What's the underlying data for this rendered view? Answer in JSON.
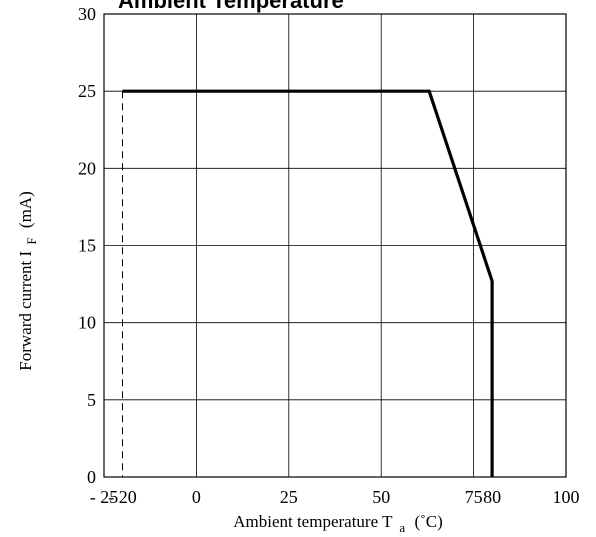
{
  "chart_data": {
    "type": "line",
    "title": "Ambient Temperature",
    "xlabel": {
      "main": "Ambient temperature T",
      "sub": "a",
      "unit": "(˚C)"
    },
    "ylabel": {
      "main": "Forward current I",
      "sub": "F",
      "unit": "(mA)"
    },
    "xlim": [
      -25,
      100
    ],
    "ylim": [
      0,
      30
    ],
    "x_ticks": [
      {
        "value": -25,
        "label": "- 25"
      },
      {
        "value": -20,
        "label": "- 20"
      },
      {
        "value": 0,
        "label": "0"
      },
      {
        "value": 25,
        "label": "25"
      },
      {
        "value": 50,
        "label": "50"
      },
      {
        "value": 75,
        "label": "75"
      },
      {
        "value": 80,
        "label": "80"
      },
      {
        "value": 100,
        "label": "100"
      }
    ],
    "y_ticks": [
      {
        "value": 0,
        "label": "0"
      },
      {
        "value": 5,
        "label": "5"
      },
      {
        "value": 10,
        "label": "10"
      },
      {
        "value": 15,
        "label": "15"
      },
      {
        "value": 20,
        "label": "20"
      },
      {
        "value": 25,
        "label": "25"
      },
      {
        "value": 30,
        "label": "30"
      }
    ],
    "grid": true,
    "series": [
      {
        "style": "solid",
        "color": "#000000",
        "points": [
          [
            -20,
            25
          ],
          [
            63,
            25
          ],
          [
            80,
            12.7
          ],
          [
            80,
            0
          ]
        ]
      },
      {
        "style": "dashed",
        "color": "#000000",
        "points": [
          [
            -20,
            25
          ],
          [
            -20,
            0
          ]
        ]
      }
    ]
  }
}
